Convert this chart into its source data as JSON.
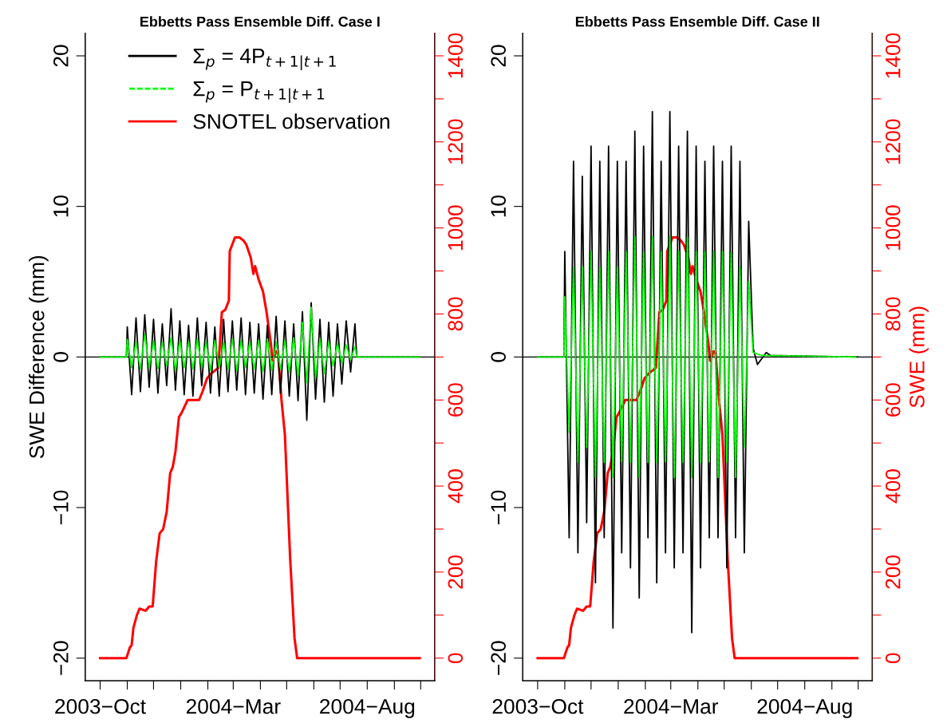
{
  "chart_data": [
    {
      "type": "line",
      "title": "Ebbetts Pass Ensemble Diff. Case I",
      "ylabel": "SWE Difference (mm)",
      "legend": "top",
      "xlim": [
        "2003-09-14",
        "2004-10-17"
      ],
      "xticks": [
        {
          "value": "2003-10-01",
          "label": "2003−Oct"
        },
        {
          "value": "2003-11-01",
          "label": null
        },
        {
          "value": "2003-12-01",
          "label": null
        },
        {
          "value": "2004-01-01",
          "label": null
        },
        {
          "value": "2004-02-01",
          "label": null
        },
        {
          "value": "2004-03-01",
          "label": "2004−Mar"
        },
        {
          "value": "2004-04-01",
          "label": null
        },
        {
          "value": "2004-05-01",
          "label": null
        },
        {
          "value": "2004-06-01",
          "label": null
        },
        {
          "value": "2004-07-01",
          "label": null
        },
        {
          "value": "2004-08-01",
          "label": "2004−Aug"
        },
        {
          "value": "2004-09-01",
          "label": null
        },
        {
          "value": "2004-10-01",
          "label": null
        }
      ],
      "ylim": [
        -21.5,
        21.5
      ],
      "yticks": [
        -20,
        -10,
        0,
        10,
        20
      ],
      "y2lim": [
        -52.5,
        1452.5
      ],
      "y2ticks": [
        0,
        {
          "value": 100,
          "label": null
        },
        200,
        {
          "value": 300,
          "label": null
        },
        400,
        {
          "value": 500,
          "label": null
        },
        600,
        {
          "value": 700,
          "label": null
        },
        800,
        {
          "value": 900,
          "label": null
        },
        1000,
        {
          "value": 1100,
          "label": null
        },
        1200,
        {
          "value": 1300,
          "label": null
        },
        1400
      ],
      "ref_lines": [
        {
          "axis": "y",
          "value": 0,
          "color": "#000000"
        }
      ],
      "series": [
        {
          "name": "Σ$_{p}$ = 4P$_{t+1|t+1}$",
          "color": "#000000",
          "line_style": "solid",
          "x": [
            "2003-10-01",
            "2003-10-31",
            "2003-11-01",
            "2003-11-06",
            "2003-11-11",
            "2003-11-16",
            "2003-11-21",
            "2003-11-26",
            "2003-12-01",
            "2003-12-06",
            "2003-12-11",
            "2003-12-16",
            "2003-12-21",
            "2003-12-26",
            "2003-12-31",
            "2004-01-05",
            "2004-01-10",
            "2004-01-15",
            "2004-01-20",
            "2004-01-25",
            "2004-01-30",
            "2004-02-04",
            "2004-02-09",
            "2004-02-14",
            "2004-02-19",
            "2004-02-24",
            "2004-02-29",
            "2004-03-05",
            "2004-03-10",
            "2004-03-15",
            "2004-03-20",
            "2004-03-25",
            "2004-03-30",
            "2004-04-04",
            "2004-04-09",
            "2004-04-14",
            "2004-04-19",
            "2004-04-24",
            "2004-04-29",
            "2004-05-04",
            "2004-05-09",
            "2004-05-14",
            "2004-05-19",
            "2004-05-24",
            "2004-05-29",
            "2004-06-03",
            "2004-06-08",
            "2004-06-13",
            "2004-06-18",
            "2004-06-23",
            "2004-06-28",
            "2004-07-03",
            "2004-07-08",
            "2004-07-13",
            "2004-07-18",
            "2004-07-20",
            "2004-09-30"
          ],
          "values": [
            0,
            0,
            2.0,
            -2.5,
            2.6,
            -2.3,
            2.8,
            -2.0,
            2.5,
            -2.4,
            2.2,
            -1.9,
            3.2,
            -2.2,
            2.4,
            -2.5,
            2.1,
            -2.6,
            2.6,
            -1.9,
            2.3,
            -2.4,
            2.0,
            -2.6,
            2.5,
            -2.3,
            2.4,
            -2.2,
            2.6,
            -2.5,
            2.3,
            -2.4,
            2.2,
            -2.8,
            2.1,
            -2.5,
            2.7,
            -2.4,
            2.4,
            -2.6,
            2.2,
            -2.9,
            3.0,
            -4.2,
            3.6,
            -2.8,
            2.5,
            -3.0,
            2.3,
            -2.6,
            2.2,
            -1.8,
            2.4,
            -1.0,
            2.2,
            0,
            0
          ]
        },
        {
          "name": "Σ$_{p}$ = P$_{t+1|t+1}$",
          "color": "#00ff00",
          "line_style": "dashed",
          "x": [
            "2003-10-01",
            "2003-10-31",
            "2003-11-01",
            "2003-11-06",
            "2003-11-11",
            "2003-11-16",
            "2003-11-21",
            "2003-11-26",
            "2003-12-01",
            "2003-12-06",
            "2003-12-11",
            "2003-12-16",
            "2003-12-21",
            "2003-12-26",
            "2003-12-31",
            "2004-01-05",
            "2004-01-10",
            "2004-01-15",
            "2004-01-20",
            "2004-01-25",
            "2004-01-30",
            "2004-02-04",
            "2004-02-09",
            "2004-02-14",
            "2004-02-19",
            "2004-02-24",
            "2004-02-29",
            "2004-03-05",
            "2004-03-10",
            "2004-03-15",
            "2004-03-20",
            "2004-03-25",
            "2004-03-30",
            "2004-04-04",
            "2004-04-09",
            "2004-04-14",
            "2004-04-19",
            "2004-04-24",
            "2004-04-29",
            "2004-05-04",
            "2004-05-09",
            "2004-05-14",
            "2004-05-19",
            "2004-05-24",
            "2004-05-29",
            "2004-06-03",
            "2004-06-08",
            "2004-06-13",
            "2004-06-18",
            "2004-06-23",
            "2004-06-28",
            "2004-07-03",
            "2004-07-08",
            "2004-07-13",
            "2004-07-18",
            "2004-07-20",
            "2004-09-30"
          ],
          "values": [
            0,
            0,
            1.2,
            -0.7,
            1.0,
            -0.8,
            1.5,
            -0.7,
            1.1,
            -0.8,
            1.0,
            -0.6,
            1.3,
            -0.9,
            1.1,
            -0.7,
            1.0,
            -0.8,
            1.2,
            -0.7,
            1.0,
            -0.9,
            1.1,
            -0.7,
            1.0,
            -0.8,
            1.2,
            -0.9,
            1.1,
            -0.7,
            1.0,
            -0.8,
            1.1,
            -1.0,
            1.2,
            -0.9,
            1.0,
            -0.8,
            1.1,
            -1.0,
            1.3,
            -1.3,
            2.3,
            -1.7,
            3.3,
            -1.4,
            1.2,
            -1.1,
            1.0,
            -0.6,
            0.9,
            -0.4,
            0.8,
            -0.2,
            0.7,
            0,
            0
          ]
        },
        {
          "name": "SNOTEL observation",
          "color": "#ff0000",
          "line_style": "solid",
          "axis": "y2",
          "x": [
            "2003-10-01",
            "2003-10-31",
            "2003-11-04",
            "2003-11-06",
            "2003-11-08",
            "2003-11-12",
            "2003-11-15",
            "2003-11-22",
            "2003-11-26",
            "2003-11-30",
            "2003-12-04",
            "2003-12-08",
            "2003-12-12",
            "2003-12-16",
            "2003-12-20",
            "2003-12-23",
            "2003-12-26",
            "2003-12-30",
            "2004-01-02",
            "2004-01-09",
            "2004-01-22",
            "2004-01-26",
            "2004-01-31",
            "2004-02-04",
            "2004-02-13",
            "2004-02-17",
            "2004-02-21",
            "2004-02-25",
            "2004-02-26",
            "2004-03-03",
            "2004-03-08",
            "2004-03-12",
            "2004-03-16",
            "2004-03-21",
            "2004-03-24",
            "2004-03-26",
            "2004-03-30",
            "2004-04-04",
            "2004-04-08",
            "2004-04-13",
            "2004-04-15",
            "2004-04-19",
            "2004-04-21",
            "2004-04-25",
            "2004-04-29",
            "2004-05-05",
            "2004-05-10",
            "2004-05-13",
            "2004-09-30"
          ],
          "values": [
            0,
            0,
            25,
            30,
            70,
            100,
            115,
            110,
            120,
            120,
            225,
            290,
            300,
            340,
            430,
            445,
            480,
            560,
            570,
            600,
            600,
            620,
            650,
            660,
            675,
            804,
            810,
            831,
            946,
            978,
            978,
            972,
            961,
            931,
            893,
            911,
            880,
            852,
            805,
            731,
            691,
            713,
            713,
            602,
            519,
            231,
            46,
            0,
            0
          ]
        }
      ]
    },
    {
      "type": "line",
      "title": "Ebbetts Pass Ensemble Diff. Case II",
      "y2label": "SWE (mm)",
      "legend": false,
      "xlim": [
        "2003-09-14",
        "2004-10-17"
      ],
      "xticks": [
        {
          "value": "2003-10-01",
          "label": "2003−Oct"
        },
        {
          "value": "2003-11-01",
          "label": null
        },
        {
          "value": "2003-12-01",
          "label": null
        },
        {
          "value": "2004-01-01",
          "label": null
        },
        {
          "value": "2004-02-01",
          "label": null
        },
        {
          "value": "2004-03-01",
          "label": "2004−Mar"
        },
        {
          "value": "2004-04-01",
          "label": null
        },
        {
          "value": "2004-05-01",
          "label": null
        },
        {
          "value": "2004-06-01",
          "label": null
        },
        {
          "value": "2004-07-01",
          "label": null
        },
        {
          "value": "2004-08-01",
          "label": "2004−Aug"
        },
        {
          "value": "2004-09-01",
          "label": null
        },
        {
          "value": "2004-10-01",
          "label": null
        }
      ],
      "ylim": [
        -21.5,
        21.5
      ],
      "yticks": [
        -20,
        -10,
        0,
        10,
        20
      ],
      "y2lim": [
        -52.5,
        1452.5
      ],
      "y2ticks": [
        0,
        {
          "value": 100,
          "label": null
        },
        200,
        {
          "value": 300,
          "label": null
        },
        400,
        {
          "value": 500,
          "label": null
        },
        600,
        {
          "value": 700,
          "label": null
        },
        800,
        {
          "value": 900,
          "label": null
        },
        1000,
        {
          "value": 1100,
          "label": null
        },
        1200,
        {
          "value": 1300,
          "label": null
        },
        1400
      ],
      "ref_lines": [
        {
          "axis": "y",
          "value": 0,
          "color": "#000000"
        }
      ],
      "series": [
        {
          "color": "#000000",
          "line_style": "solid",
          "x": [
            "2003-10-01",
            "2003-10-31",
            "2003-11-01",
            "2003-11-06",
            "2003-11-11",
            "2003-11-16",
            "2003-11-21",
            "2003-11-26",
            "2003-12-01",
            "2003-12-06",
            "2003-12-11",
            "2003-12-16",
            "2003-12-21",
            "2003-12-26",
            "2003-12-31",
            "2004-01-05",
            "2004-01-10",
            "2004-01-15",
            "2004-01-20",
            "2004-01-25",
            "2004-01-30",
            "2004-02-04",
            "2004-02-09",
            "2004-02-14",
            "2004-02-19",
            "2004-02-24",
            "2004-02-29",
            "2004-03-05",
            "2004-03-10",
            "2004-03-15",
            "2004-03-20",
            "2004-03-25",
            "2004-03-30",
            "2004-04-04",
            "2004-04-09",
            "2004-04-14",
            "2004-04-19",
            "2004-04-24",
            "2004-04-29",
            "2004-05-04",
            "2004-05-09",
            "2004-05-14",
            "2004-05-19",
            "2004-05-24",
            "2004-05-29",
            "2004-06-03",
            "2004-06-08",
            "2004-06-18",
            "2004-06-23",
            "2004-09-30"
          ],
          "values": [
            0,
            0,
            7,
            -12,
            13,
            -13,
            12,
            -11,
            14,
            -15,
            13,
            -12,
            14,
            -18,
            13,
            -13,
            13,
            -14,
            15,
            -16,
            14,
            -12,
            16.3,
            -15,
            13,
            -13,
            16.3,
            -14,
            14,
            -13,
            15,
            -18.3,
            14,
            -14,
            13,
            -12,
            14,
            -12,
            13,
            -14,
            14,
            -12,
            13,
            -13,
            9,
            0.6,
            -0.5,
            0.3,
            0.1,
            0
          ]
        },
        {
          "color": "#00ff00",
          "line_style": "dashed",
          "x": [
            "2003-10-01",
            "2003-10-31",
            "2003-11-01",
            "2003-11-06",
            "2003-11-11",
            "2003-11-16",
            "2003-11-21",
            "2003-11-26",
            "2003-12-01",
            "2003-12-06",
            "2003-12-11",
            "2003-12-16",
            "2003-12-21",
            "2003-12-26",
            "2003-12-31",
            "2004-01-05",
            "2004-01-10",
            "2004-01-15",
            "2004-01-20",
            "2004-01-25",
            "2004-01-30",
            "2004-02-04",
            "2004-02-09",
            "2004-02-14",
            "2004-02-19",
            "2004-02-24",
            "2004-02-29",
            "2004-03-05",
            "2004-03-10",
            "2004-03-15",
            "2004-03-20",
            "2004-03-25",
            "2004-03-30",
            "2004-04-04",
            "2004-04-09",
            "2004-04-14",
            "2004-04-19",
            "2004-04-24",
            "2004-04-29",
            "2004-05-04",
            "2004-05-09",
            "2004-05-14",
            "2004-05-19",
            "2004-05-24",
            "2004-05-29",
            "2004-06-03",
            "2004-06-13",
            "2004-09-30"
          ],
          "values": [
            0,
            0,
            4,
            -5,
            6,
            -7,
            6,
            -6,
            7,
            -8,
            6,
            -7,
            7,
            -8,
            6,
            -7,
            7,
            -7,
            8,
            -8,
            7,
            -7,
            8,
            -7,
            7,
            -7,
            8,
            -8,
            7,
            -7,
            8,
            -8,
            7,
            -7,
            7,
            -7,
            7,
            -8,
            7,
            -7,
            7,
            -8,
            6,
            -6,
            5,
            0.3,
            0.1,
            0
          ]
        },
        {
          "color": "#ff0000",
          "line_style": "solid",
          "axis": "y2",
          "x": [
            "2003-10-01",
            "2003-10-31",
            "2003-11-04",
            "2003-11-06",
            "2003-11-08",
            "2003-11-12",
            "2003-11-15",
            "2003-11-22",
            "2003-11-26",
            "2003-11-30",
            "2003-12-04",
            "2003-12-08",
            "2003-12-12",
            "2003-12-16",
            "2003-12-20",
            "2003-12-23",
            "2003-12-26",
            "2003-12-30",
            "2004-01-02",
            "2004-01-09",
            "2004-01-22",
            "2004-01-26",
            "2004-01-31",
            "2004-02-04",
            "2004-02-13",
            "2004-02-17",
            "2004-02-21",
            "2004-02-25",
            "2004-02-26",
            "2004-03-03",
            "2004-03-08",
            "2004-03-12",
            "2004-03-16",
            "2004-03-21",
            "2004-03-24",
            "2004-03-26",
            "2004-03-30",
            "2004-04-04",
            "2004-04-08",
            "2004-04-13",
            "2004-04-15",
            "2004-04-19",
            "2004-04-21",
            "2004-04-25",
            "2004-04-29",
            "2004-05-05",
            "2004-05-10",
            "2004-05-13",
            "2004-09-30"
          ],
          "values": [
            0,
            0,
            25,
            30,
            70,
            100,
            115,
            110,
            120,
            120,
            225,
            290,
            300,
            340,
            430,
            445,
            480,
            560,
            570,
            600,
            600,
            620,
            650,
            660,
            675,
            804,
            810,
            831,
            946,
            978,
            978,
            972,
            961,
            931,
            893,
            911,
            880,
            852,
            805,
            731,
            691,
            713,
            713,
            602,
            519,
            231,
            46,
            0,
            0
          ]
        }
      ]
    }
  ]
}
